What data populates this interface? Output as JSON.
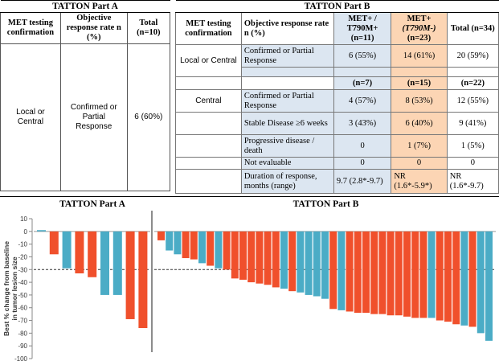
{
  "part_a": {
    "title": "TATTON Part A",
    "headers": [
      "MET testing confirmation",
      "Objective response rate n (%)",
      "Total (n=10)"
    ],
    "row": [
      "Local or Central",
      "Confirmed or Partial Response",
      "6 (60%)"
    ]
  },
  "part_b": {
    "title": "TATTON Part B",
    "headers": [
      "MET testing confirmation",
      "Objective response rate n (%)",
      "MET+ / T790M+ (n=11)",
      "MET+",
      "(T790M-)",
      "(n=23)",
      "Total (n=34)"
    ],
    "local": {
      "confirmation": "Local or Central",
      "row": [
        "Confirmed or Partial Response",
        "6 (55%)",
        "14 (61%)",
        "20 (59%)"
      ]
    },
    "central_counts": [
      "(n=7)",
      "(n=15)",
      "(n=22)"
    ],
    "central": {
      "confirmation": "Central",
      "rows": [
        [
          "Confirmed or Partial Response",
          "4 (57%)",
          "8 (53%)",
          "12 (55%)"
        ],
        [
          "Stable Disease ≥6 weeks",
          "3 (43%)",
          "6 (40%)",
          "9 (41%)"
        ],
        [
          "Progressive disease / death",
          "0",
          "1 (7%)",
          "1 (5%)"
        ],
        [
          "Not evaluable",
          "0",
          "0",
          "0"
        ],
        [
          "Duration of response, months (range)",
          "9.7 (2.8*-9.7)",
          "NR (1.6*-5.9*)",
          "NR (1.6*-9.7)"
        ]
      ]
    }
  },
  "colors": {
    "blue": "#4bacc6",
    "orange": "#f0502c",
    "blue_bg": "#dce6f1",
    "orange_bg": "#fcd5b4"
  },
  "chart_data": [
    {
      "type": "bar",
      "title": "TATTON Part A",
      "ylabel": "Best % change from baseline in tumor lesion size",
      "ylim": [
        -100,
        10
      ],
      "yticks": [
        "10",
        "0",
        "-10",
        "-20",
        "-30",
        "-40",
        "-50",
        "-60",
        "-70",
        "-80",
        "-90",
        "-100"
      ],
      "reference_line": -30,
      "values": [
        1,
        -18,
        -29,
        -33,
        -36,
        -50,
        -50,
        -69,
        -76
      ],
      "series_colors": [
        "blue",
        "orange",
        "blue",
        "orange",
        "orange",
        "blue",
        "blue",
        "orange",
        "orange"
      ]
    },
    {
      "type": "bar",
      "title": "TATTON Part B",
      "ylim": [
        -100,
        10
      ],
      "reference_line": -30,
      "values": [
        -7,
        -15,
        -18,
        -21,
        -22,
        -25,
        -27,
        -29,
        -30,
        -37,
        -38,
        -40,
        -41,
        -42,
        -44,
        -45,
        -47,
        -48,
        -50,
        -51,
        -53,
        -61,
        -62,
        -63,
        -64,
        -64,
        -65,
        -65,
        -66,
        -66,
        -67,
        -68,
        -68,
        -68,
        -70,
        -71,
        -73,
        -74,
        -75,
        -80,
        -86
      ],
      "series_colors": [
        "orange",
        "blue",
        "blue",
        "orange",
        "orange",
        "blue",
        "orange",
        "blue",
        "orange",
        "orange",
        "orange",
        "orange",
        "orange",
        "orange",
        "orange",
        "blue",
        "orange",
        "blue",
        "blue",
        "blue",
        "blue",
        "orange",
        "blue",
        "orange",
        "orange",
        "orange",
        "orange",
        "orange",
        "orange",
        "orange",
        "orange",
        "orange",
        "orange",
        "blue",
        "orange",
        "orange",
        "orange",
        "blue",
        "orange",
        "blue",
        "blue"
      ]
    }
  ]
}
